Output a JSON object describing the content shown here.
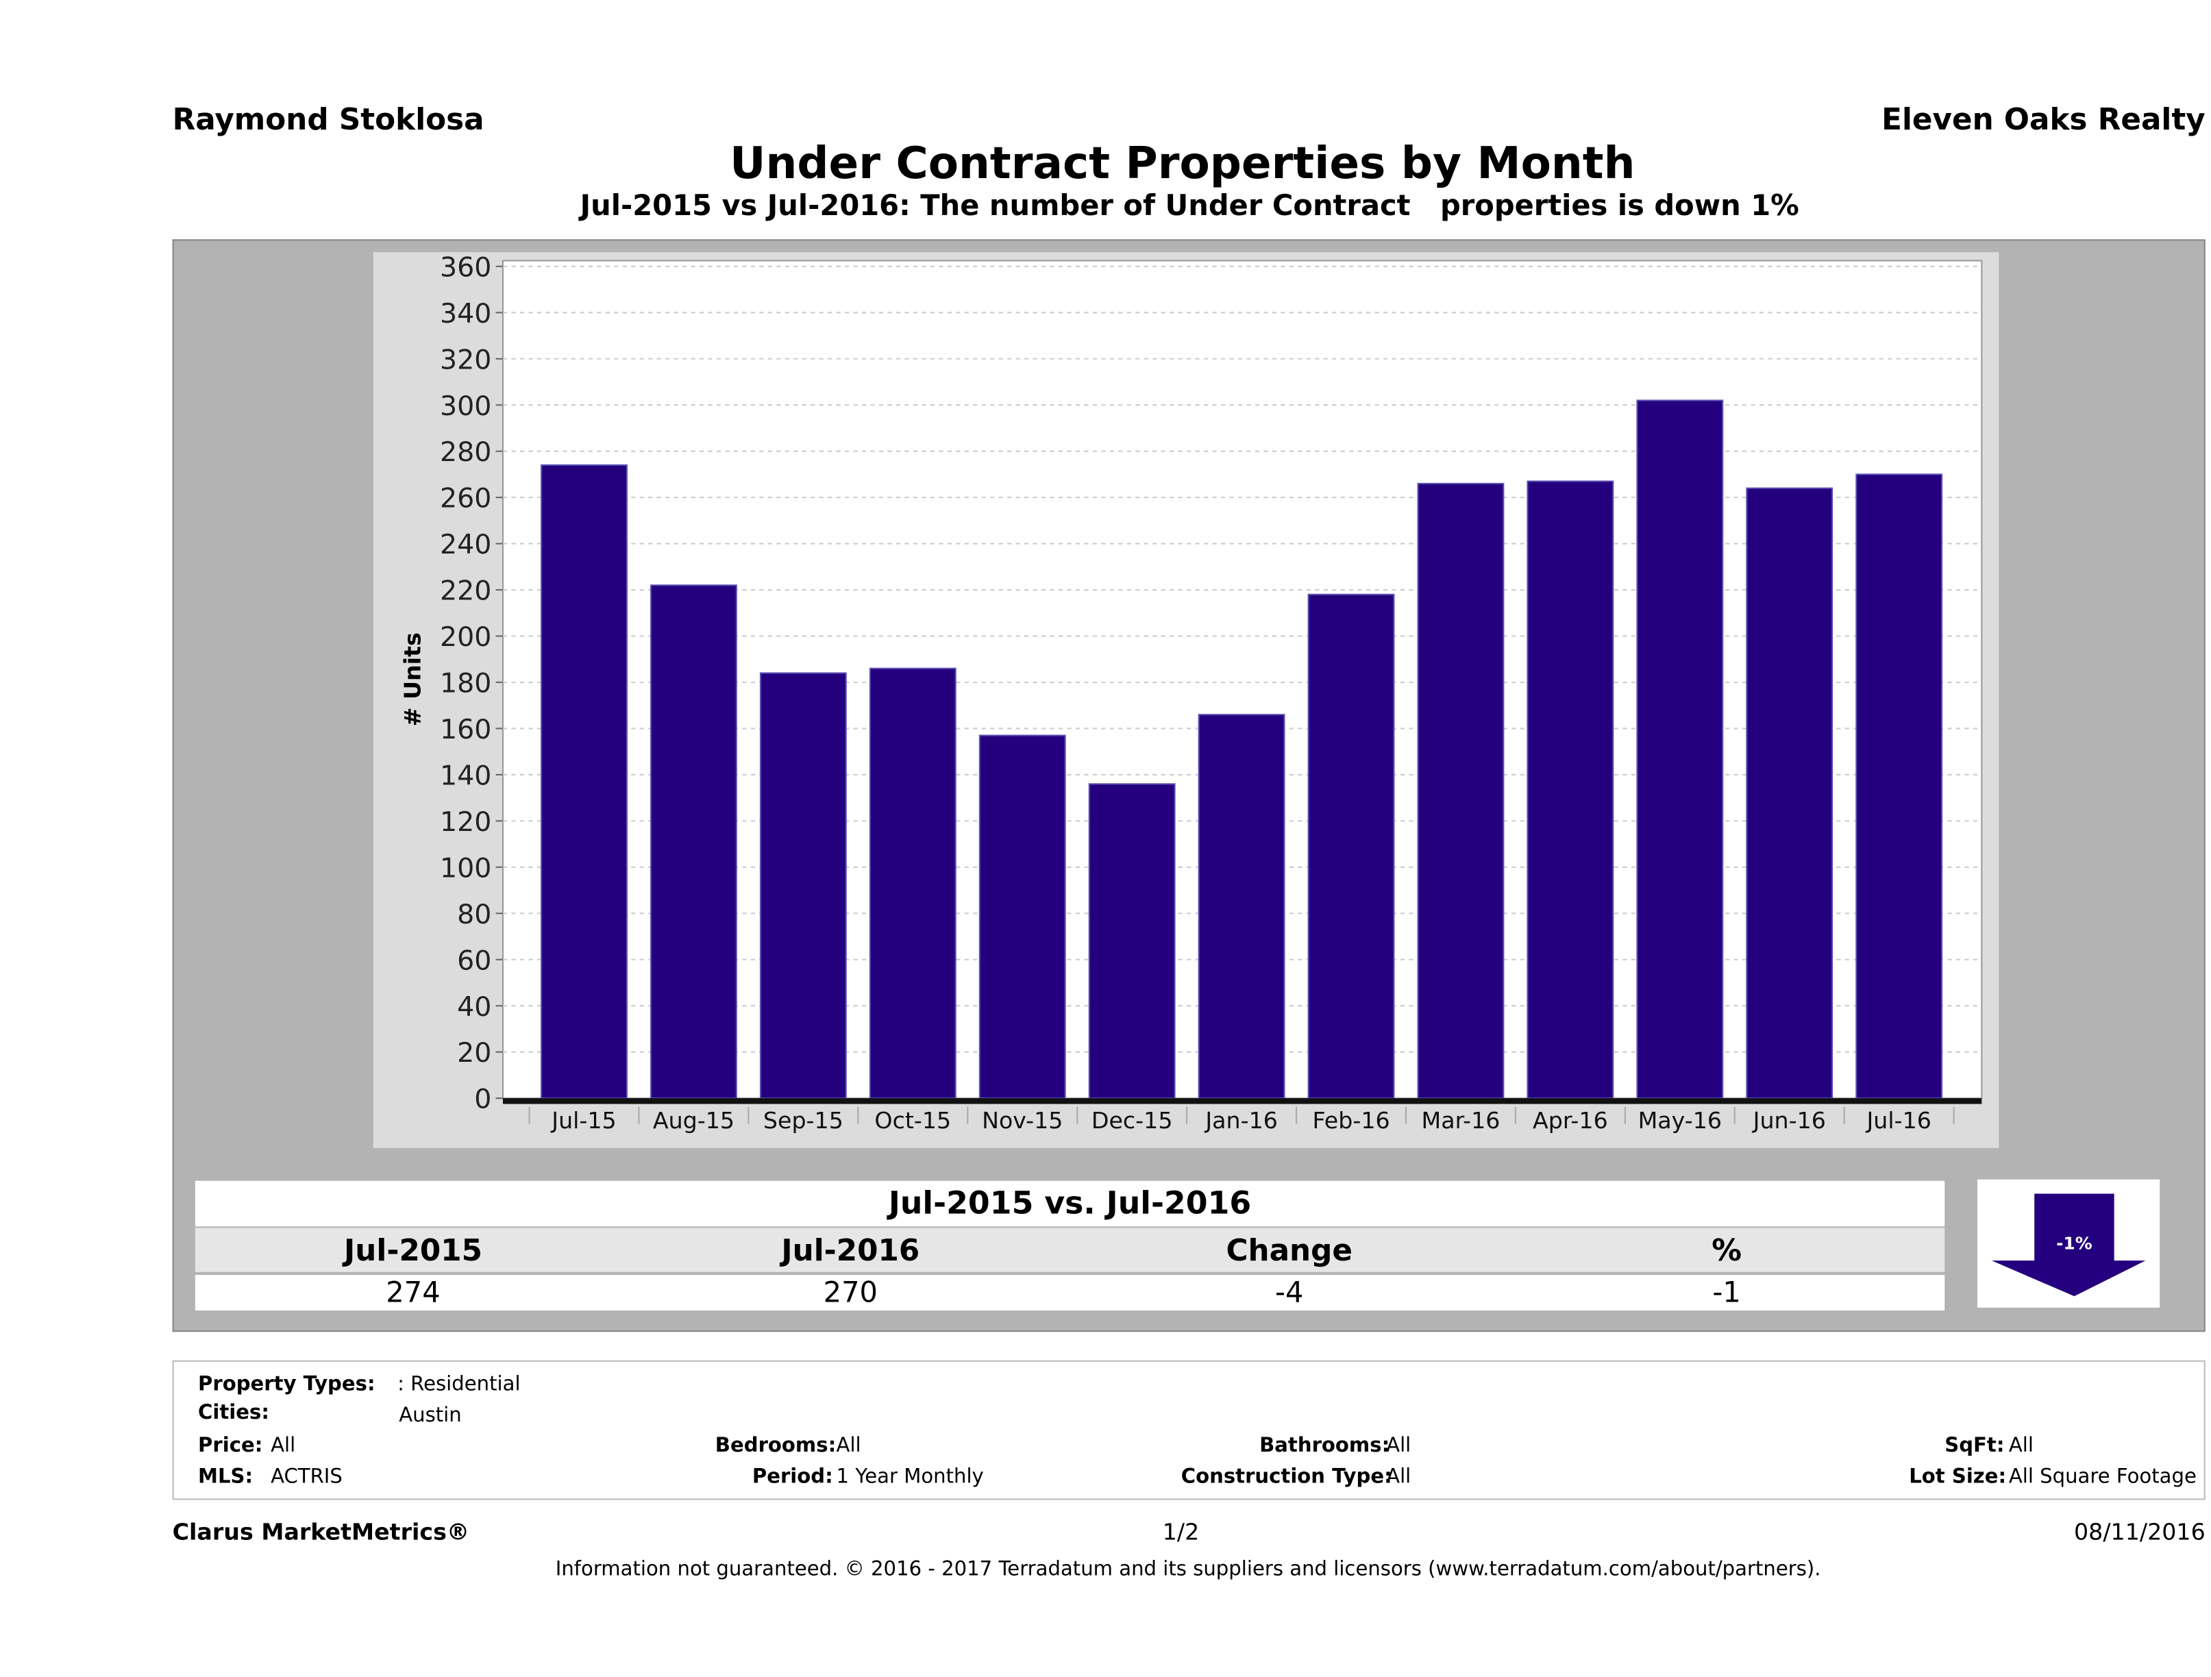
{
  "header": {
    "agent": "Raymond Stoklosa",
    "company": "Eleven Oaks Realty",
    "title": "Under Contract Properties by Month",
    "subtitle": "Jul-2015 vs Jul-2016: The number of Under Contract   properties is down 1%"
  },
  "colors": {
    "bar": "#24007f",
    "panel": "#b3b3b3",
    "chart_bg": "#dcdcdc"
  },
  "chart_data": {
    "type": "bar",
    "title": "Under Contract Properties by Month",
    "xlabel": "",
    "ylabel": "# Units",
    "ylim": [
      0,
      360
    ],
    "yticks": [
      0,
      20,
      40,
      60,
      80,
      100,
      120,
      140,
      160,
      180,
      200,
      220,
      240,
      260,
      280,
      300,
      320,
      340,
      360
    ],
    "grid": true,
    "categories": [
      "Jul-15",
      "Aug-15",
      "Sep-15",
      "Oct-15",
      "Nov-15",
      "Dec-15",
      "Jan-16",
      "Feb-16",
      "Mar-16",
      "Apr-16",
      "May-16",
      "Jun-16",
      "Jul-16"
    ],
    "values": [
      274,
      222,
      184,
      186,
      157,
      136,
      166,
      218,
      266,
      267,
      302,
      264,
      270
    ]
  },
  "summary": {
    "title": "Jul-2015 vs. Jul-2016",
    "headers": [
      "Jul-2015",
      "Jul-2016",
      "Change",
      "%"
    ],
    "values": [
      "274",
      "270",
      "-4",
      "-1"
    ],
    "badge": "-1%",
    "badge_icon": "down-arrow-icon"
  },
  "filters": {
    "property_types_label": "Property Types:",
    "property_types": ": Residential",
    "cities_label": "Cities:",
    "cities": "Austin",
    "price_label": "Price:",
    "price": "All",
    "bedrooms_label": "Bedrooms:",
    "bedrooms": "All",
    "bathrooms_label": "Bathrooms:",
    "bathrooms": "All",
    "sqft_label": "SqFt:",
    "sqft": "All",
    "mls_label": "MLS:",
    "mls": "ACTRIS",
    "period_label": "Period:",
    "period": "1 Year Monthly",
    "construction_label": "Construction Type:",
    "construction": "All",
    "lot_label": "Lot Size:",
    "lot": "All Square Footage"
  },
  "footer": {
    "brand": "Clarus MarketMetrics®",
    "page": "1/2",
    "date": "08/11/2016",
    "disclaimer": "Information not guaranteed. © 2016 - 2017 Terradatum and its suppliers and licensors (www.terradatum.com/about/partners)."
  }
}
